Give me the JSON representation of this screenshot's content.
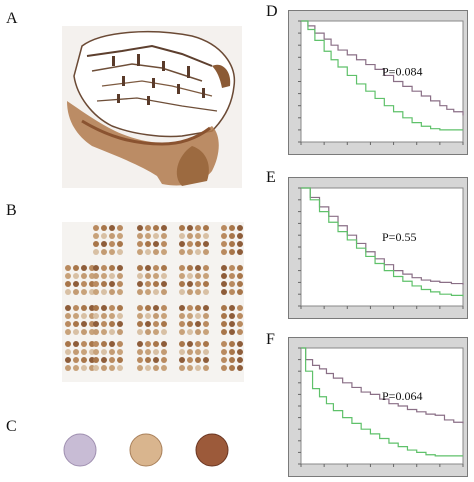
{
  "panels": {
    "A": {
      "label": "A"
    },
    "B": {
      "label": "B"
    },
    "C": {
      "label": "C"
    },
    "D": {
      "label": "D"
    },
    "E": {
      "label": "E"
    },
    "F": {
      "label": "F"
    }
  },
  "chart_data": [
    {
      "type": "line",
      "panel": "D",
      "annotation": "P=0.084",
      "xlim": [
        0,
        7
      ],
      "ylim": [
        0,
        1
      ],
      "series": [
        {
          "color": "#8a6f86",
          "x": [
            0,
            0.3,
            0.6,
            1.0,
            1.3,
            1.6,
            2.0,
            2.4,
            2.8,
            3.2,
            3.6,
            4.0,
            4.4,
            4.8,
            5.2,
            5.6,
            6.0,
            6.3,
            6.6,
            7.0
          ],
          "y": [
            1.0,
            0.96,
            0.9,
            0.85,
            0.8,
            0.76,
            0.72,
            0.68,
            0.64,
            0.6,
            0.55,
            0.5,
            0.46,
            0.42,
            0.38,
            0.34,
            0.3,
            0.27,
            0.25,
            0.22
          ]
        },
        {
          "color": "#5fc16a",
          "x": [
            0,
            0.3,
            0.6,
            1.0,
            1.3,
            1.6,
            2.0,
            2.4,
            2.8,
            3.2,
            3.6,
            4.0,
            4.4,
            4.8,
            5.2,
            5.6,
            6.0,
            6.5,
            7.0
          ],
          "y": [
            1.0,
            0.93,
            0.84,
            0.75,
            0.68,
            0.62,
            0.55,
            0.48,
            0.42,
            0.36,
            0.3,
            0.25,
            0.2,
            0.16,
            0.13,
            0.11,
            0.1,
            0.1,
            0.1
          ]
        }
      ]
    },
    {
      "type": "line",
      "panel": "E",
      "annotation": "P=0.55",
      "xlim": [
        0,
        7
      ],
      "ylim": [
        0,
        1
      ],
      "series": [
        {
          "color": "#8a6f86",
          "x": [
            0,
            0.4,
            0.8,
            1.2,
            1.6,
            2.0,
            2.4,
            2.8,
            3.2,
            3.6,
            4.0,
            4.4,
            4.8,
            5.2,
            5.6,
            6.0,
            6.5,
            7.0
          ],
          "y": [
            1.0,
            0.92,
            0.84,
            0.76,
            0.68,
            0.6,
            0.53,
            0.46,
            0.4,
            0.35,
            0.3,
            0.27,
            0.24,
            0.22,
            0.21,
            0.2,
            0.19,
            0.18
          ]
        },
        {
          "color": "#5fc16a",
          "x": [
            0,
            0.4,
            0.8,
            1.2,
            1.6,
            2.0,
            2.4,
            2.8,
            3.2,
            3.6,
            4.0,
            4.4,
            4.8,
            5.2,
            5.6,
            6.0,
            6.5,
            7.0
          ],
          "y": [
            1.0,
            0.9,
            0.8,
            0.71,
            0.63,
            0.56,
            0.49,
            0.42,
            0.36,
            0.3,
            0.25,
            0.21,
            0.17,
            0.14,
            0.12,
            0.1,
            0.09,
            0.08
          ]
        }
      ]
    },
    {
      "type": "line",
      "panel": "F",
      "annotation": "P=0.064",
      "xlim": [
        0,
        7
      ],
      "ylim": [
        0,
        1
      ],
      "series": [
        {
          "color": "#8a6f86",
          "x": [
            0,
            0.2,
            0.5,
            0.8,
            1.1,
            1.4,
            1.8,
            2.2,
            2.6,
            3.0,
            3.4,
            3.8,
            4.2,
            4.6,
            5.0,
            5.4,
            5.8,
            6.2,
            6.6,
            7.0
          ],
          "y": [
            1.0,
            0.9,
            0.85,
            0.82,
            0.78,
            0.74,
            0.7,
            0.66,
            0.62,
            0.6,
            0.56,
            0.52,
            0.5,
            0.47,
            0.45,
            0.43,
            0.42,
            0.38,
            0.36,
            0.35
          ]
        },
        {
          "color": "#5fc16a",
          "x": [
            0,
            0.2,
            0.5,
            0.8,
            1.1,
            1.4,
            1.8,
            2.2,
            2.6,
            3.0,
            3.4,
            3.8,
            4.2,
            4.6,
            5.0,
            5.4,
            5.8,
            6.5,
            7.0
          ],
          "y": [
            1.0,
            0.8,
            0.65,
            0.58,
            0.52,
            0.46,
            0.4,
            0.35,
            0.3,
            0.26,
            0.22,
            0.18,
            0.15,
            0.12,
            0.1,
            0.08,
            0.07,
            0.07,
            0.07
          ]
        }
      ]
    }
  ]
}
